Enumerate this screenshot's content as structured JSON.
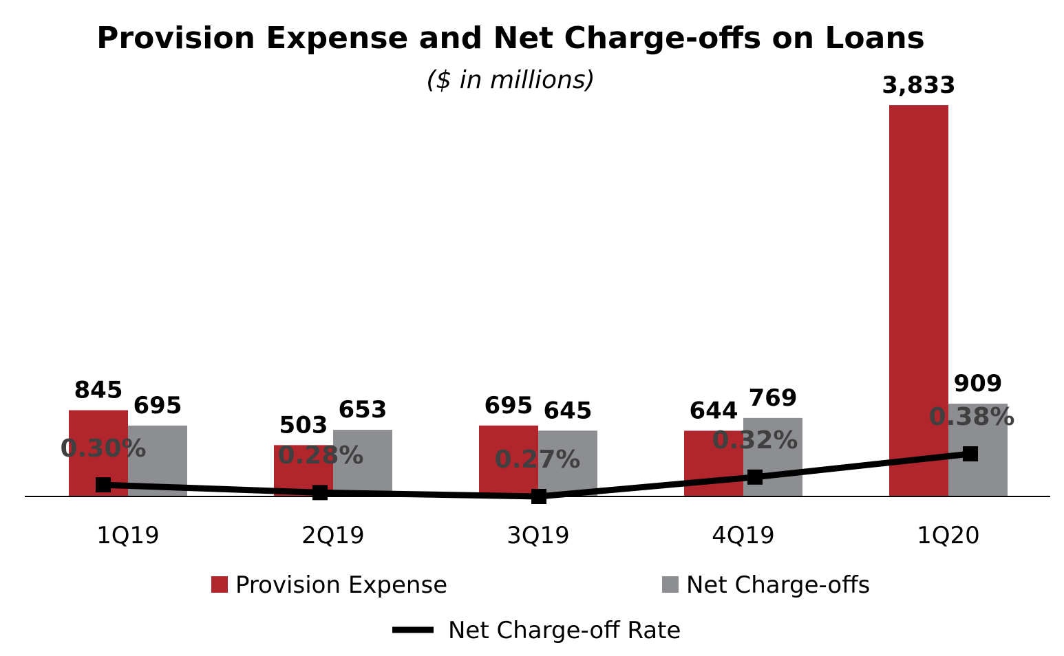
{
  "chart_data": {
    "type": "bar",
    "title": "Provision Expense and Net Charge-offs on Loans",
    "subtitle": "($ in millions)",
    "categories": [
      "1Q19",
      "2Q19",
      "3Q19",
      "4Q19",
      "1Q20"
    ],
    "series": [
      {
        "name": "Provision Expense",
        "kind": "bar",
        "color": "#B0262C",
        "values": [
          845,
          503,
          695,
          644,
          3833
        ],
        "labels": [
          "845",
          "503",
          "695",
          "644",
          "3,833"
        ]
      },
      {
        "name": "Net Charge-offs",
        "kind": "bar",
        "color": "#8C8E91",
        "values": [
          695,
          653,
          645,
          769,
          909
        ],
        "labels": [
          "695",
          "653",
          "645",
          "769",
          "909"
        ]
      },
      {
        "name": "Net Charge-off Rate",
        "kind": "line",
        "color": "#000000",
        "values": [
          0.3,
          0.28,
          0.27,
          0.32,
          0.38
        ],
        "labels": [
          "0.30%",
          "0.28%",
          "0.27%",
          "0.32%",
          "0.38%"
        ]
      }
    ],
    "ylim": [
      0,
      3833
    ],
    "grid": false,
    "legend_position": "bottom"
  }
}
